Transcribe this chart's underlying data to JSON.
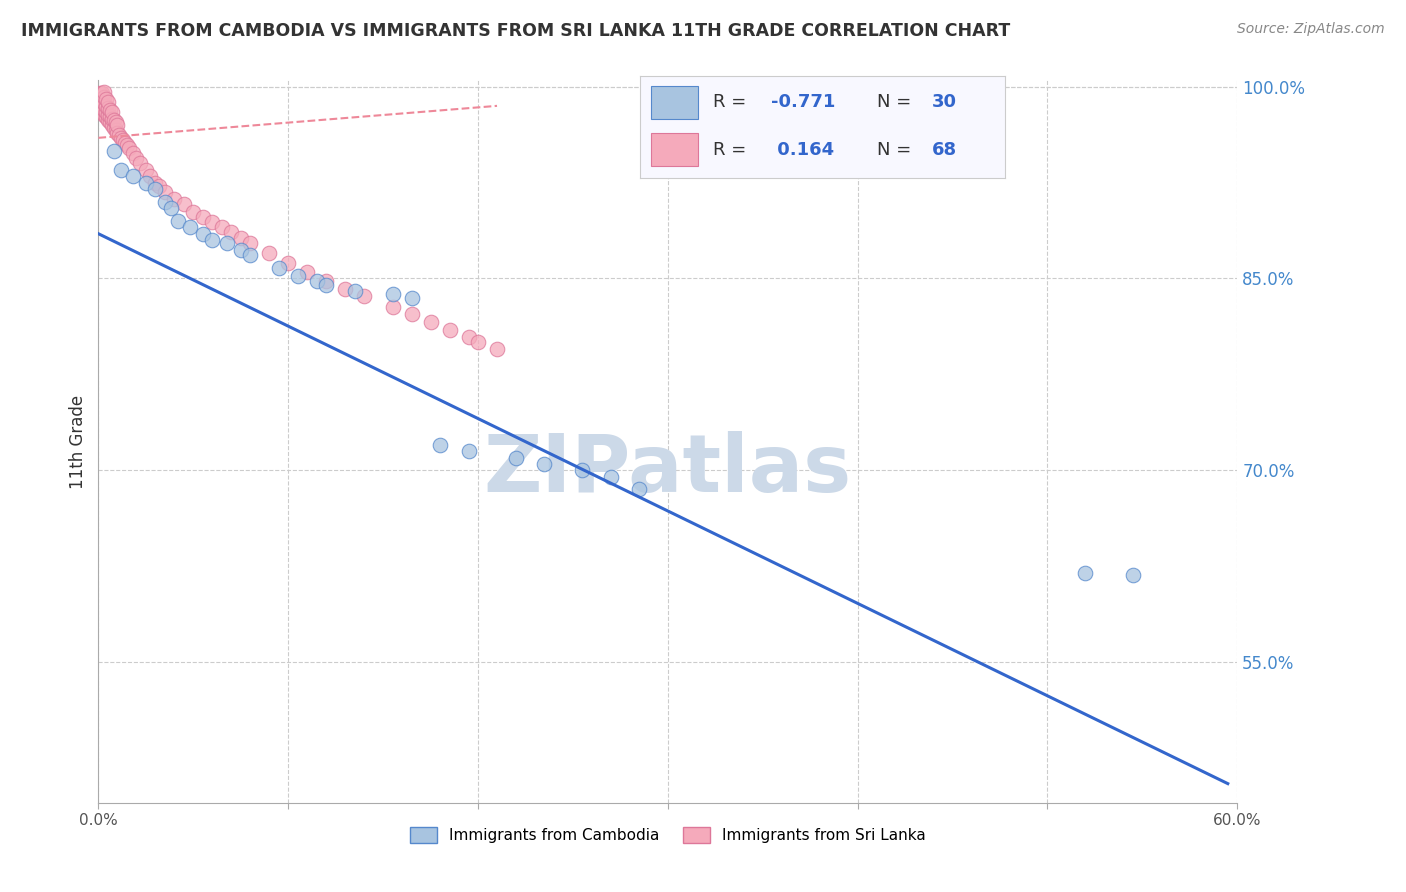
{
  "title": "IMMIGRANTS FROM CAMBODIA VS IMMIGRANTS FROM SRI LANKA 11TH GRADE CORRELATION CHART",
  "source": "Source: ZipAtlas.com",
  "ylabel": "11th Grade",
  "xlim": [
    0.0,
    0.6
  ],
  "ylim": [
    0.44,
    1.005
  ],
  "xticks": [
    0.0,
    0.1,
    0.2,
    0.3,
    0.4,
    0.5,
    0.6
  ],
  "xticklabels": [
    "0.0%",
    "",
    "",
    "",
    "",
    "",
    "60.0%"
  ],
  "ytick_vals": [
    0.55,
    0.7,
    0.85,
    1.0
  ],
  "ytick_labels": [
    "55.0%",
    "70.0%",
    "85.0%",
    "100.0%"
  ],
  "watermark": "ZIPatlas",
  "watermark_color": "#ccd9e8",
  "background_color": "#ffffff",
  "grid_color": "#cccccc",
  "blue_dot_color": "#a8c4e0",
  "blue_dot_edge": "#5588cc",
  "blue_line_color": "#3366cc",
  "pink_dot_color": "#f5aabb",
  "pink_dot_edge": "#dd7799",
  "pink_line_color": "#ee8899",
  "legend_box_color": "#f8f8ff",
  "legend_border_color": "#cccccc",
  "blue_scatter_x": [
    0.008,
    0.012,
    0.018,
    0.025,
    0.03,
    0.035,
    0.038,
    0.042,
    0.048,
    0.055,
    0.06,
    0.068,
    0.075,
    0.08,
    0.095,
    0.105,
    0.115,
    0.12,
    0.135,
    0.155,
    0.165,
    0.18,
    0.195,
    0.22,
    0.235,
    0.255,
    0.27,
    0.285,
    0.52,
    0.545
  ],
  "blue_scatter_y": [
    0.95,
    0.935,
    0.93,
    0.925,
    0.92,
    0.91,
    0.905,
    0.895,
    0.89,
    0.885,
    0.88,
    0.878,
    0.872,
    0.868,
    0.858,
    0.852,
    0.848,
    0.845,
    0.84,
    0.838,
    0.835,
    0.72,
    0.715,
    0.71,
    0.705,
    0.7,
    0.695,
    0.685,
    0.62,
    0.618
  ],
  "pink_scatter_x": [
    0.001,
    0.001,
    0.001,
    0.002,
    0.002,
    0.002,
    0.002,
    0.003,
    0.003,
    0.003,
    0.003,
    0.003,
    0.004,
    0.004,
    0.004,
    0.004,
    0.005,
    0.005,
    0.005,
    0.005,
    0.006,
    0.006,
    0.006,
    0.007,
    0.007,
    0.007,
    0.008,
    0.008,
    0.009,
    0.009,
    0.01,
    0.01,
    0.011,
    0.012,
    0.013,
    0.014,
    0.015,
    0.016,
    0.018,
    0.02,
    0.022,
    0.025,
    0.027,
    0.03,
    0.032,
    0.035,
    0.04,
    0.045,
    0.05,
    0.055,
    0.06,
    0.065,
    0.07,
    0.075,
    0.08,
    0.09,
    0.1,
    0.11,
    0.12,
    0.13,
    0.14,
    0.155,
    0.165,
    0.175,
    0.185,
    0.195,
    0.2,
    0.21
  ],
  "pink_scatter_y": [
    0.985,
    0.99,
    0.995,
    0.98,
    0.985,
    0.99,
    0.995,
    0.978,
    0.982,
    0.987,
    0.992,
    0.996,
    0.976,
    0.98,
    0.985,
    0.99,
    0.974,
    0.978,
    0.983,
    0.988,
    0.972,
    0.977,
    0.982,
    0.97,
    0.975,
    0.98,
    0.968,
    0.974,
    0.966,
    0.972,
    0.964,
    0.97,
    0.962,
    0.96,
    0.958,
    0.956,
    0.954,
    0.952,
    0.948,
    0.944,
    0.94,
    0.935,
    0.93,
    0.925,
    0.922,
    0.918,
    0.912,
    0.908,
    0.902,
    0.898,
    0.894,
    0.89,
    0.886,
    0.882,
    0.878,
    0.87,
    0.862,
    0.855,
    0.848,
    0.842,
    0.836,
    0.828,
    0.822,
    0.816,
    0.81,
    0.804,
    0.8,
    0.795
  ],
  "blue_trend_x": [
    0.0,
    0.595
  ],
  "blue_trend_y": [
    0.885,
    0.455
  ],
  "pink_trend_x": [
    0.0,
    0.21
  ],
  "pink_trend_y": [
    0.96,
    0.985
  ]
}
